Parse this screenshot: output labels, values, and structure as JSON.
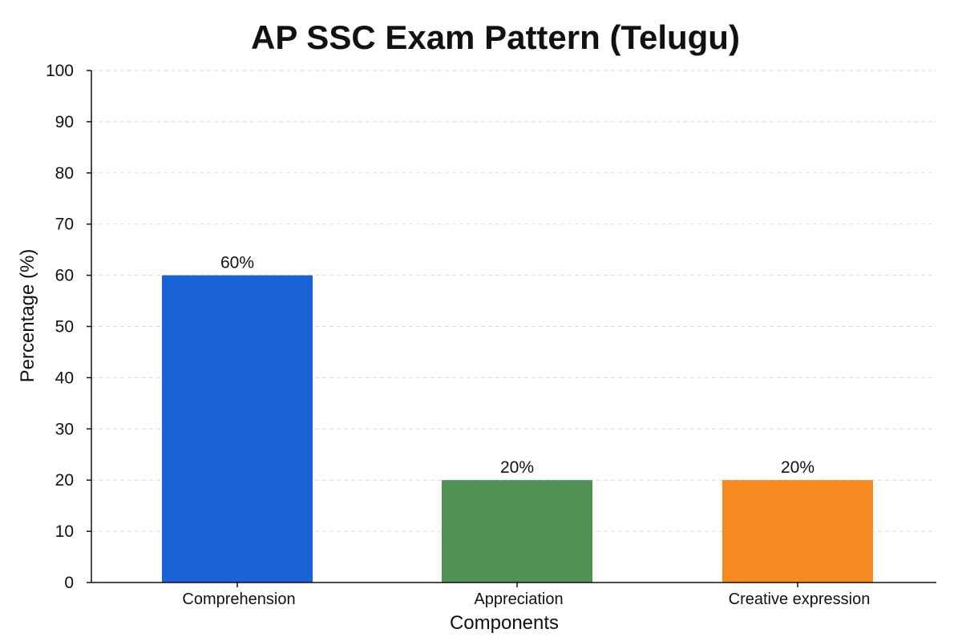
{
  "chart_data": {
    "type": "bar",
    "title": "AP SSC Exam Pattern (Telugu)",
    "xlabel": "Components",
    "ylabel": "Percentage (%)",
    "categories": [
      "Comprehension",
      "Appreciation",
      "Creative expression"
    ],
    "values": [
      60,
      20,
      20
    ],
    "data_labels": [
      "60%",
      "20%",
      "20%"
    ],
    "colors": [
      "#1a63d6",
      "#4f9253",
      "#f6891f"
    ],
    "ylim": [
      0,
      100
    ],
    "yticks": [
      0,
      10,
      20,
      30,
      40,
      50,
      60,
      70,
      80,
      90,
      100
    ],
    "grid": "horizontal dashed",
    "legend": "none"
  }
}
